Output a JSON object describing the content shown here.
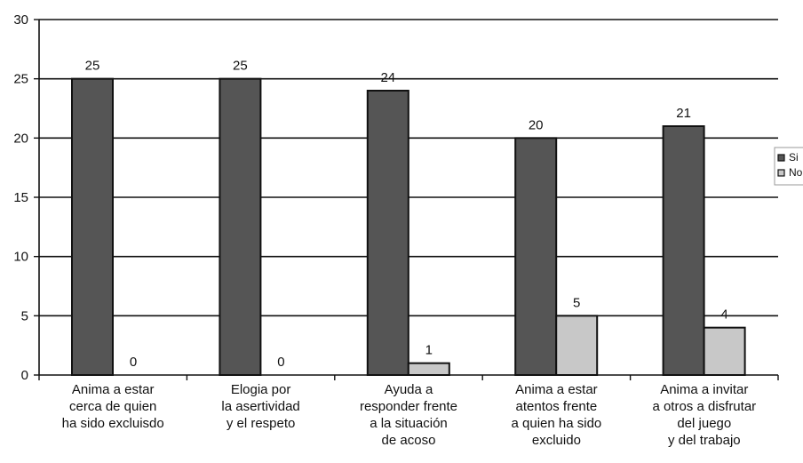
{
  "chart_data": {
    "type": "bar",
    "categories": [
      [
        "Anima a estar",
        "cerca de quien",
        "ha sido excluisdo"
      ],
      [
        "Elogia por",
        "la asertividad",
        "y el respeto"
      ],
      [
        "Ayuda a",
        "responder frente",
        "a la situación",
        "de acoso"
      ],
      [
        "Anima a estar",
        "atentos frente",
        "a quien ha sido",
        "excluido"
      ],
      [
        "Anima a invitar",
        "a otros a disfrutar",
        "del juego",
        "y del trabajo"
      ]
    ],
    "series": [
      {
        "name": "Si",
        "values": [
          25,
          25,
          24,
          20,
          21
        ],
        "color": "#555555"
      },
      {
        "name": "No",
        "values": [
          0,
          0,
          1,
          5,
          4
        ],
        "color": "#c8c8c8"
      }
    ],
    "ylim": [
      0,
      30
    ],
    "yticks": [
      0,
      5,
      10,
      15,
      20,
      25,
      30
    ],
    "grid": true,
    "legend": "right",
    "title": "",
    "xlabel": "",
    "ylabel": ""
  }
}
